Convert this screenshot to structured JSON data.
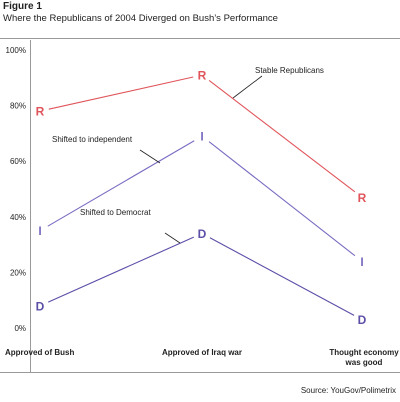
{
  "figure": {
    "label": "Figure 1",
    "title": "Where the Republicans of 2004 Diverged on Bush’s Performance",
    "source": "Source: YouGov/Polimetrix"
  },
  "chart_data": {
    "type": "line",
    "categories": [
      [
        "Approved of Bush"
      ],
      [
        "Approved of Iraq war"
      ],
      [
        "Thought economy",
        "was good"
      ]
    ],
    "y_ticks": [
      "0%",
      "20%",
      "40%",
      "60%",
      "80%",
      "100%"
    ],
    "ylim": [
      0,
      100
    ],
    "grid": false,
    "series": [
      {
        "name": "Stable Republicans",
        "marker": "R",
        "color": "#e0555b",
        "values": [
          78,
          91,
          47
        ]
      },
      {
        "name": "Shifted to independent",
        "marker": "I",
        "color": "#7a6cc2",
        "values": [
          35,
          69,
          24
        ]
      },
      {
        "name": "Shifted to Democrat",
        "marker": "D",
        "color": "#5b4fa8",
        "values": [
          8,
          34,
          3
        ]
      }
    ],
    "label_color": "#222222",
    "axis_color": "#999999"
  }
}
